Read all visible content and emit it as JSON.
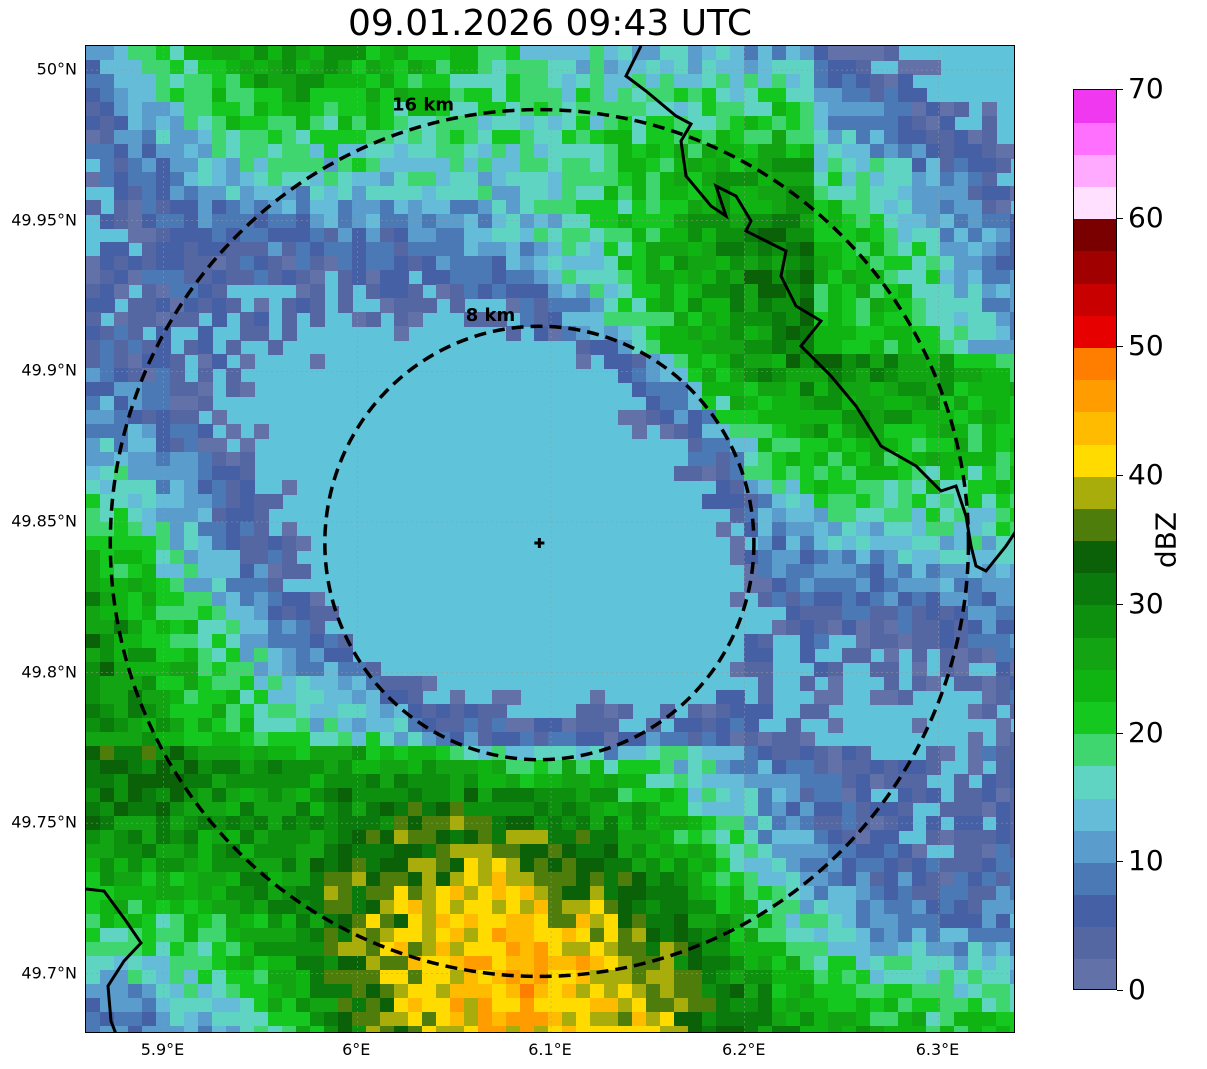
{
  "title": "09.01.2026 09:43 UTC",
  "map": {
    "lat_range": [
      49.68,
      50.008
    ],
    "lon_range": [
      5.86,
      6.34
    ],
    "lat_ticks": [
      {
        "value": 50.0,
        "label": "50°N"
      },
      {
        "value": 49.95,
        "label": "49.95°N"
      },
      {
        "value": 49.9,
        "label": "49.9°N"
      },
      {
        "value": 49.85,
        "label": "49.85°N"
      },
      {
        "value": 49.8,
        "label": "49.8°N"
      },
      {
        "value": 49.75,
        "label": "49.75°N"
      },
      {
        "value": 49.7,
        "label": "49.7°N"
      }
    ],
    "lon_ticks": [
      {
        "value": 5.9,
        "label": "5.9°E"
      },
      {
        "value": 6.0,
        "label": "6°E"
      },
      {
        "value": 6.1,
        "label": "6.1°E"
      },
      {
        "value": 6.2,
        "label": "6.2°E"
      },
      {
        "value": 6.3,
        "label": "6.3°E"
      }
    ],
    "radar_site": {
      "lat": 49.843,
      "lon": 6.094
    },
    "range_rings": [
      {
        "radius_km": 8,
        "label": "8 km"
      },
      {
        "radius_km": 16,
        "label": "16 km"
      }
    ],
    "gridlines": true,
    "colors": {
      "ring": "#000000",
      "border": "#000000",
      "grid": "#9a9a9a"
    }
  },
  "colorbar": {
    "unit": "dBZ",
    "min": 0,
    "max": 70,
    "tick_labels": [
      "0",
      "10",
      "20",
      "30",
      "40",
      "50",
      "60",
      "70"
    ],
    "tick_values": [
      0,
      10,
      20,
      30,
      40,
      50,
      60,
      70
    ],
    "step": 2.5,
    "colors": [
      "#6272a8",
      "#5567a3",
      "#4660a6",
      "#4a79b6",
      "#5a9ccb",
      "#65bcd9",
      "#5fd4c2",
      "#40d66f",
      "#14c820",
      "#10b412",
      "#12a413",
      "#0e900f",
      "#0b7a0d",
      "#0a6108",
      "#4e7d0b",
      "#a8ad0c",
      "#ffdb00",
      "#ffbb00",
      "#ff9c00",
      "#ff7e00",
      "#e60000",
      "#c80000",
      "#a00000",
      "#7a0000",
      "#ffe0ff",
      "#ffaaff",
      "#ff70ff",
      "#f038f0"
    ]
  }
}
